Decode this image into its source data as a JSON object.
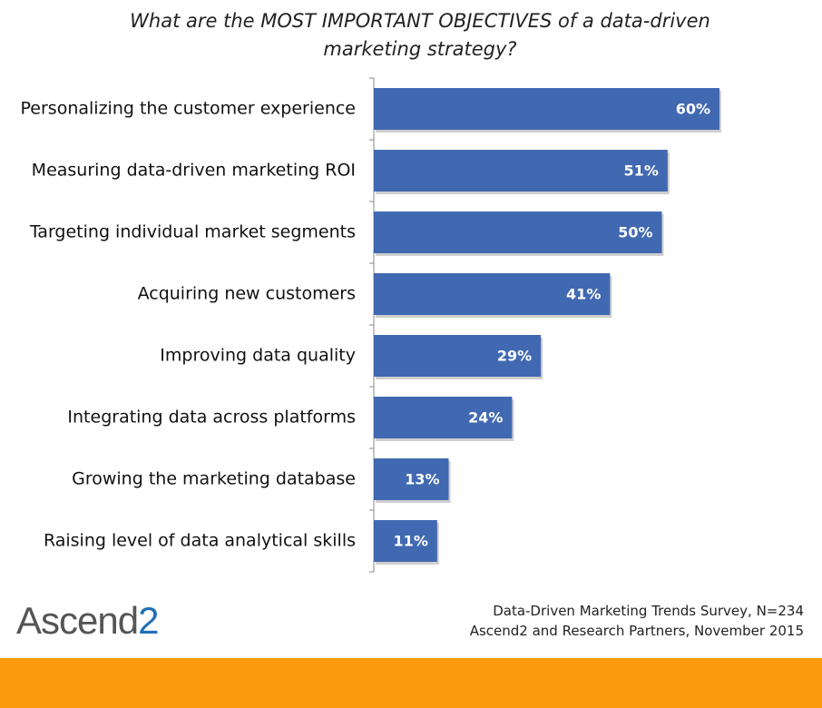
{
  "chart_data": {
    "type": "bar",
    "orientation": "horizontal",
    "title": "What are the MOST IMPORTANT OBJECTIVES of a data-driven marketing strategy?",
    "categories": [
      "Personalizing the customer experience",
      "Measuring data-driven marketing ROI",
      "Targeting individual market segments",
      "Acquiring new customers",
      "Improving data quality",
      "Integrating data across platforms",
      "Growing the marketing database",
      "Raising level of data analytical skills"
    ],
    "values": [
      60,
      51,
      50,
      41,
      29,
      24,
      13,
      11
    ],
    "value_labels": [
      "60%",
      "51%",
      "50%",
      "41%",
      "29%",
      "24%",
      "13%",
      "11%"
    ],
    "color": "#4169b1"
  },
  "footer": {
    "logo": {
      "text": "Ascend",
      "suffix": "2"
    },
    "source": [
      "Data-Driven Marketing Trends Survey, N=234",
      "Ascend2 and Research Partners, November 2015"
    ]
  }
}
